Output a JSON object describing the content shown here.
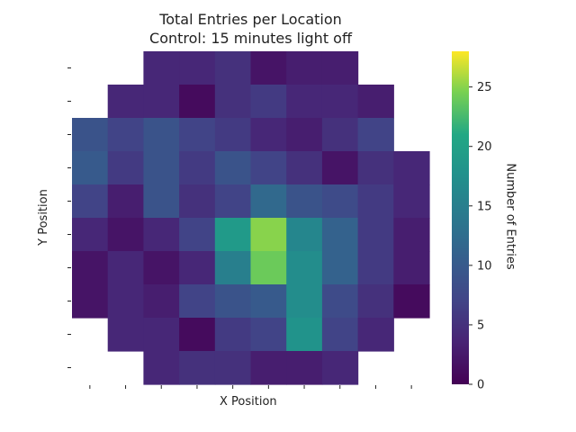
{
  "chart_data": {
    "type": "heatmap",
    "title": "Total Entries per Location",
    "subtitle": "Control: 15 minutes light off",
    "xlabel": "X Position",
    "ylabel": "Y Position",
    "colorbar_label": "Number of Entries",
    "colorbar_ticks": [
      "0",
      "5",
      "10",
      "15",
      "20",
      "25"
    ],
    "colorbar_range": [
      0,
      28
    ],
    "colormap": "viridis",
    "rows": 10,
    "cols": 10,
    "values": [
      [
        null,
        null,
        4,
        4,
        5,
        2,
        3,
        3,
        null,
        null
      ],
      [
        null,
        4,
        4,
        1,
        5,
        6,
        4,
        4,
        3,
        null
      ],
      [
        9,
        7,
        9,
        7,
        6,
        4,
        3,
        5,
        7,
        null
      ],
      [
        10,
        6,
        9,
        6,
        9,
        7,
        5,
        2,
        5,
        4
      ],
      [
        7,
        3,
        9,
        5,
        7,
        12,
        9,
        8,
        6,
        4
      ],
      [
        4,
        2,
        4,
        7,
        19,
        25,
        16,
        11,
        6,
        3
      ],
      [
        2,
        4,
        2,
        4,
        15,
        24,
        17,
        11,
        6,
        3
      ],
      [
        2,
        4,
        3,
        7,
        9,
        10,
        17,
        8,
        5,
        1
      ],
      [
        null,
        4,
        4,
        1,
        6,
        7,
        18,
        7,
        4,
        null
      ],
      [
        null,
        null,
        4,
        5,
        5,
        3,
        3,
        4,
        null,
        null
      ]
    ]
  }
}
